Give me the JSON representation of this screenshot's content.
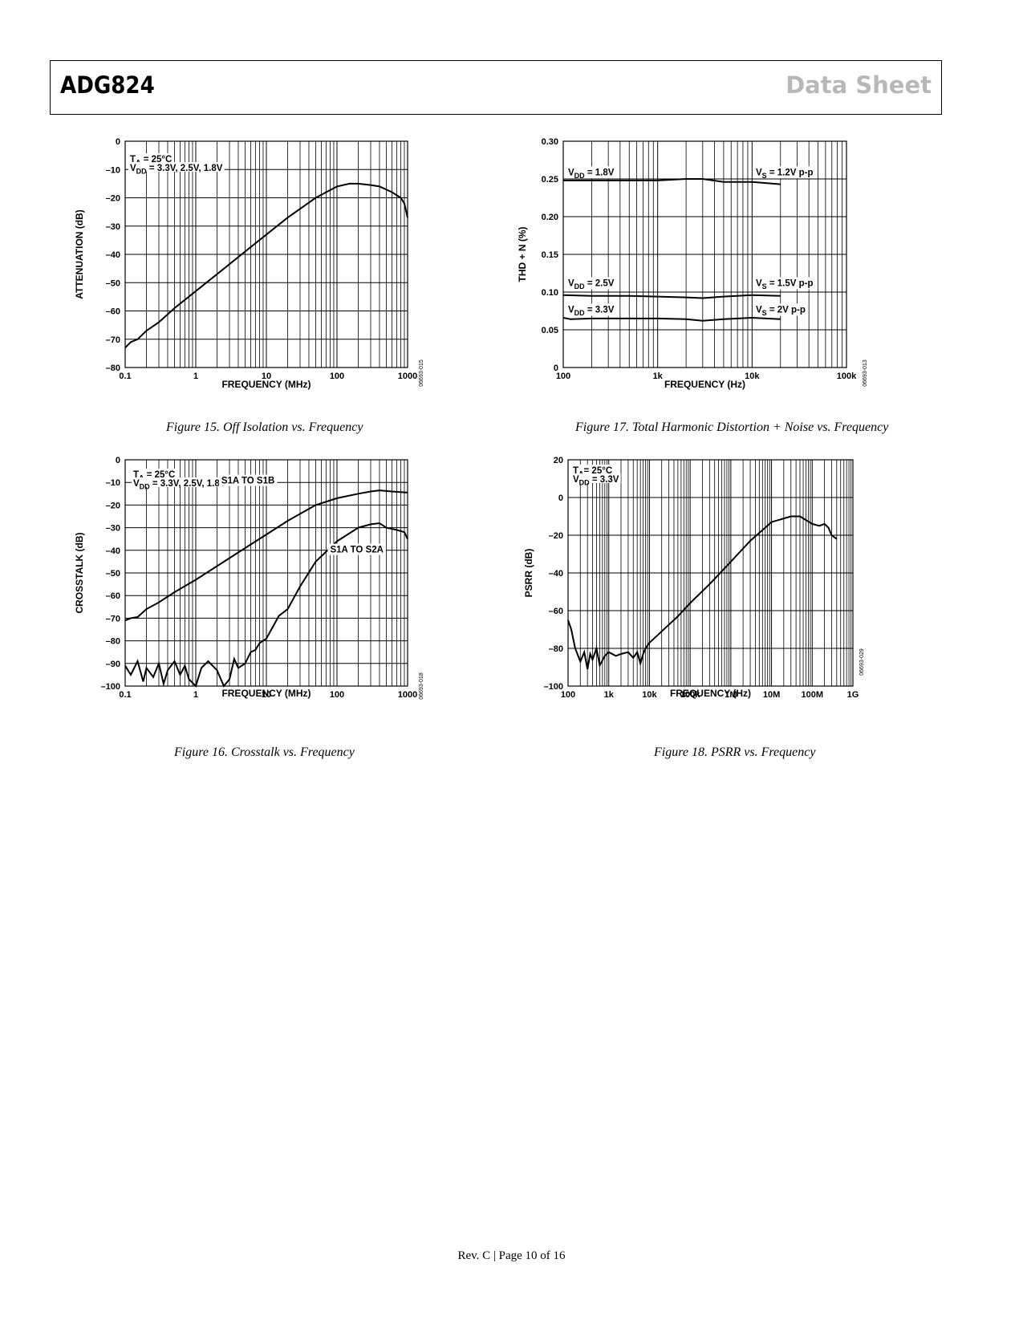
{
  "header": {
    "part_number": "ADG824",
    "doc_type": "Data Sheet"
  },
  "footer": {
    "text": "Rev. C | Page 10 of 16"
  },
  "chart_data": [
    {
      "id": "fig15",
      "type": "line",
      "caption": "Figure 15. Off Isolation vs. Frequency",
      "xlabel": "FREQUENCY (MHz)",
      "ylabel": "ATTENUATION (dB)",
      "x_scale": "log",
      "xlim": [
        0.1,
        1000
      ],
      "ylim": [
        -80,
        0
      ],
      "x_ticks": [
        0.1,
        1,
        10,
        100,
        1000
      ],
      "x_tick_labels": [
        "0.1",
        "1",
        "10",
        "100",
        "1000"
      ],
      "y_ticks": [
        0,
        -10,
        -20,
        -30,
        -40,
        -50,
        -60,
        -70,
        -80
      ],
      "y_tick_labels": [
        "0",
        "–10",
        "–20",
        "–30",
        "–40",
        "–50",
        "–60",
        "–70",
        "–80"
      ],
      "grid": true,
      "annotations": [
        {
          "sub": [
            {
              "t": "T"
            },
            {
              "t": "A",
              "s": "sub"
            },
            {
              "t": " =  25°C"
            }
          ]
        },
        {
          "sub": [
            {
              "t": "V"
            },
            {
              "t": "DD",
              "s": "sub"
            },
            {
              "t": " =  3.3V, 2.5V, 1.8V"
            }
          ]
        }
      ],
      "figure_code": "06693-015",
      "series": [
        {
          "x": [
            0.1,
            0.12,
            0.15,
            0.2,
            0.3,
            0.5,
            1,
            2,
            5,
            10,
            20,
            50,
            100,
            150,
            200,
            300,
            400,
            600,
            800,
            900,
            1000
          ],
          "y": [
            -73,
            -71,
            -70,
            -67,
            -64,
            -59,
            -53,
            -47,
            -39,
            -33,
            -27,
            -20,
            -16,
            -15,
            -15,
            -15.5,
            -16,
            -18,
            -20,
            -22,
            -27
          ]
        }
      ]
    },
    {
      "id": "fig17",
      "type": "line",
      "caption": "Figure 17. Total Harmonic Distortion + Noise vs. Frequency",
      "xlabel": "FREQUENCY (Hz)",
      "ylabel": "THD + N (%)",
      "x_scale": "log",
      "xlim": [
        100,
        100000
      ],
      "ylim": [
        0,
        0.3
      ],
      "x_ticks": [
        100,
        1000,
        10000,
        100000
      ],
      "x_tick_labels": [
        "100",
        "1k",
        "10k",
        "100k"
      ],
      "y_ticks": [
        0.3,
        0.25,
        0.2,
        0.15,
        0.1,
        0.05,
        0
      ],
      "y_tick_labels": [
        "0.30",
        "0.25",
        "0.20",
        "0.15",
        "0.10",
        "0.05",
        "0"
      ],
      "grid": true,
      "figure_code": "06693-013",
      "series": [
        {
          "labels": [
            {
              "sub": [
                {
                  "t": "V"
                },
                {
                  "t": "DD",
                  "s": "sub"
                },
                {
                  "t": " = 1.8V"
                }
              ]
            },
            {
              "sub": [
                {
                  "t": "V"
                },
                {
                  "t": "S",
                  "s": "sub"
                },
                {
                  "t": " = 1.2V p-p"
                }
              ]
            }
          ],
          "x": [
            100,
            200,
            500,
            1000,
            2000,
            3000,
            5000,
            10000,
            20000
          ],
          "y": [
            0.248,
            0.248,
            0.248,
            0.248,
            0.25,
            0.25,
            0.246,
            0.246,
            0.243
          ]
        },
        {
          "labels": [
            {
              "sub": [
                {
                  "t": "V"
                },
                {
                  "t": "DD",
                  "s": "sub"
                },
                {
                  "t": " = 2.5V"
                }
              ]
            },
            {
              "sub": [
                {
                  "t": "V"
                },
                {
                  "t": "S",
                  "s": "sub"
                },
                {
                  "t": " = 1.5V p-p"
                }
              ]
            }
          ],
          "x": [
            100,
            200,
            500,
            1000,
            2000,
            3000,
            5000,
            10000,
            20000
          ],
          "y": [
            0.096,
            0.095,
            0.095,
            0.094,
            0.093,
            0.092,
            0.094,
            0.096,
            0.095
          ]
        },
        {
          "labels": [
            {
              "sub": [
                {
                  "t": "V"
                },
                {
                  "t": "DD",
                  "s": "sub"
                },
                {
                  "t": " = 3.3V"
                }
              ]
            },
            {
              "sub": [
                {
                  "t": "V"
                },
                {
                  "t": "S",
                  "s": "sub"
                },
                {
                  "t": " = 2V p-p"
                }
              ]
            }
          ],
          "x": [
            100,
            120,
            200,
            500,
            1000,
            2000,
            3000,
            5000,
            10000,
            20000
          ],
          "y": [
            0.066,
            0.064,
            0.065,
            0.065,
            0.065,
            0.064,
            0.062,
            0.064,
            0.066,
            0.064
          ]
        }
      ]
    },
    {
      "id": "fig16",
      "type": "line",
      "caption": "Figure 16. Crosstalk vs. Frequency",
      "xlabel": "FREQUENCY (MHz)",
      "ylabel": "CROSSTALK (dB)",
      "x_scale": "log",
      "xlim": [
        0.1,
        1000
      ],
      "ylim": [
        -100,
        0
      ],
      "x_ticks": [
        0.1,
        1,
        10,
        100,
        1000
      ],
      "x_tick_labels": [
        "0.1",
        "1",
        "10",
        "100",
        "1000"
      ],
      "y_ticks": [
        0,
        -10,
        -20,
        -30,
        -40,
        -50,
        -60,
        -70,
        -80,
        -90,
        -100
      ],
      "y_tick_labels": [
        "0",
        "–10",
        "–20",
        "–30",
        "–40",
        "–50",
        "–60",
        "–70",
        "–80",
        "–90",
        "–100"
      ],
      "grid": true,
      "annotations": [
        {
          "sub": [
            {
              "t": "T"
            },
            {
              "t": "A",
              "s": "sub"
            },
            {
              "t": " = 25°C"
            }
          ]
        },
        {
          "sub": [
            {
              "t": "V"
            },
            {
              "t": "DD",
              "s": "sub"
            },
            {
              "t": " =  3.3V, 2.5V, 1.8V"
            }
          ]
        }
      ],
      "figure_code": "06693-018",
      "series": [
        {
          "name": "S1A TO S1B",
          "x": [
            0.1,
            0.12,
            0.15,
            0.2,
            0.3,
            0.5,
            1,
            2,
            5,
            10,
            20,
            50,
            100,
            200,
            300,
            400,
            600,
            1000
          ],
          "y": [
            -71,
            -70,
            -69.5,
            -66,
            -63,
            -58.5,
            -53,
            -47,
            -39,
            -33,
            -27,
            -20,
            -17,
            -15,
            -14,
            -13.5,
            -14,
            -14.5
          ]
        },
        {
          "name": "S1A TO S2A",
          "x": [
            0.1,
            0.12,
            0.15,
            0.18,
            0.2,
            0.25,
            0.3,
            0.35,
            0.4,
            0.5,
            0.6,
            0.7,
            0.8,
            1,
            1.2,
            1.5,
            2,
            2.5,
            3,
            3.5,
            4,
            5,
            6,
            7,
            8,
            10,
            15,
            20,
            30,
            50,
            100,
            200,
            300,
            400,
            500,
            700,
            900,
            1000
          ],
          "y": [
            -91,
            -95,
            -89,
            -98,
            -92,
            -96,
            -90,
            -99,
            -93,
            -89,
            -95,
            -91,
            -97,
            -100,
            -92,
            -89,
            -93,
            -100,
            -97,
            -88,
            -92,
            -90,
            -85,
            -84,
            -81,
            -79,
            -69,
            -66,
            -56,
            -45,
            -36,
            -30,
            -28.5,
            -28,
            -30,
            -31,
            -32,
            -35
          ]
        }
      ]
    },
    {
      "id": "fig18",
      "type": "line",
      "caption": "Figure 18. PSRR vs. Frequency",
      "xlabel": "FREQUENCY (Hz)",
      "ylabel": "PSRR (dB)",
      "x_scale": "log",
      "xlim": [
        100,
        1000000000
      ],
      "ylim": [
        -100,
        20
      ],
      "x_ticks": [
        100,
        1000,
        10000,
        100000,
        1000000,
        10000000,
        100000000,
        1000000000
      ],
      "x_tick_labels": [
        "100",
        "1k",
        "10k",
        "100k",
        "1M",
        "10M",
        "100M",
        "1G"
      ],
      "y_ticks": [
        20,
        0,
        -20,
        -40,
        -60,
        -80,
        -100
      ],
      "y_tick_labels": [
        "20",
        "0",
        "–20",
        "–40",
        "–60",
        "–80",
        "–100"
      ],
      "grid": true,
      "annotations": [
        {
          "sub": [
            {
              "t": "T"
            },
            {
              "t": "A",
              "s": "sub"
            },
            {
              "t": "= 25°C"
            }
          ]
        },
        {
          "sub": [
            {
              "t": "V"
            },
            {
              "t": "DD",
              "s": "sub"
            },
            {
              "t": " = 3.3V"
            }
          ]
        }
      ],
      "figure_code": "06693-029",
      "series": [
        {
          "x": [
            100,
            120,
            150,
            200,
            250,
            300,
            350,
            400,
            500,
            600,
            800,
            1000,
            1500,
            2000,
            3000,
            4000,
            5000,
            6000,
            7000,
            8000,
            10000,
            20000,
            50000,
            100000,
            300000,
            1000000,
            3000000,
            10000000,
            30000000,
            50000000,
            100000000,
            150000000,
            200000000,
            250000000,
            300000000,
            400000000
          ],
          "y": [
            -65,
            -70,
            -80,
            -87,
            -82,
            -91,
            -83,
            -86,
            -80,
            -89,
            -84,
            -82,
            -84,
            -83,
            -82,
            -85,
            -82,
            -88,
            -83,
            -80,
            -77,
            -71,
            -63,
            -56,
            -46,
            -34,
            -23,
            -13,
            -10,
            -10,
            -14,
            -15,
            -14,
            -16,
            -20,
            -22
          ]
        }
      ]
    }
  ]
}
